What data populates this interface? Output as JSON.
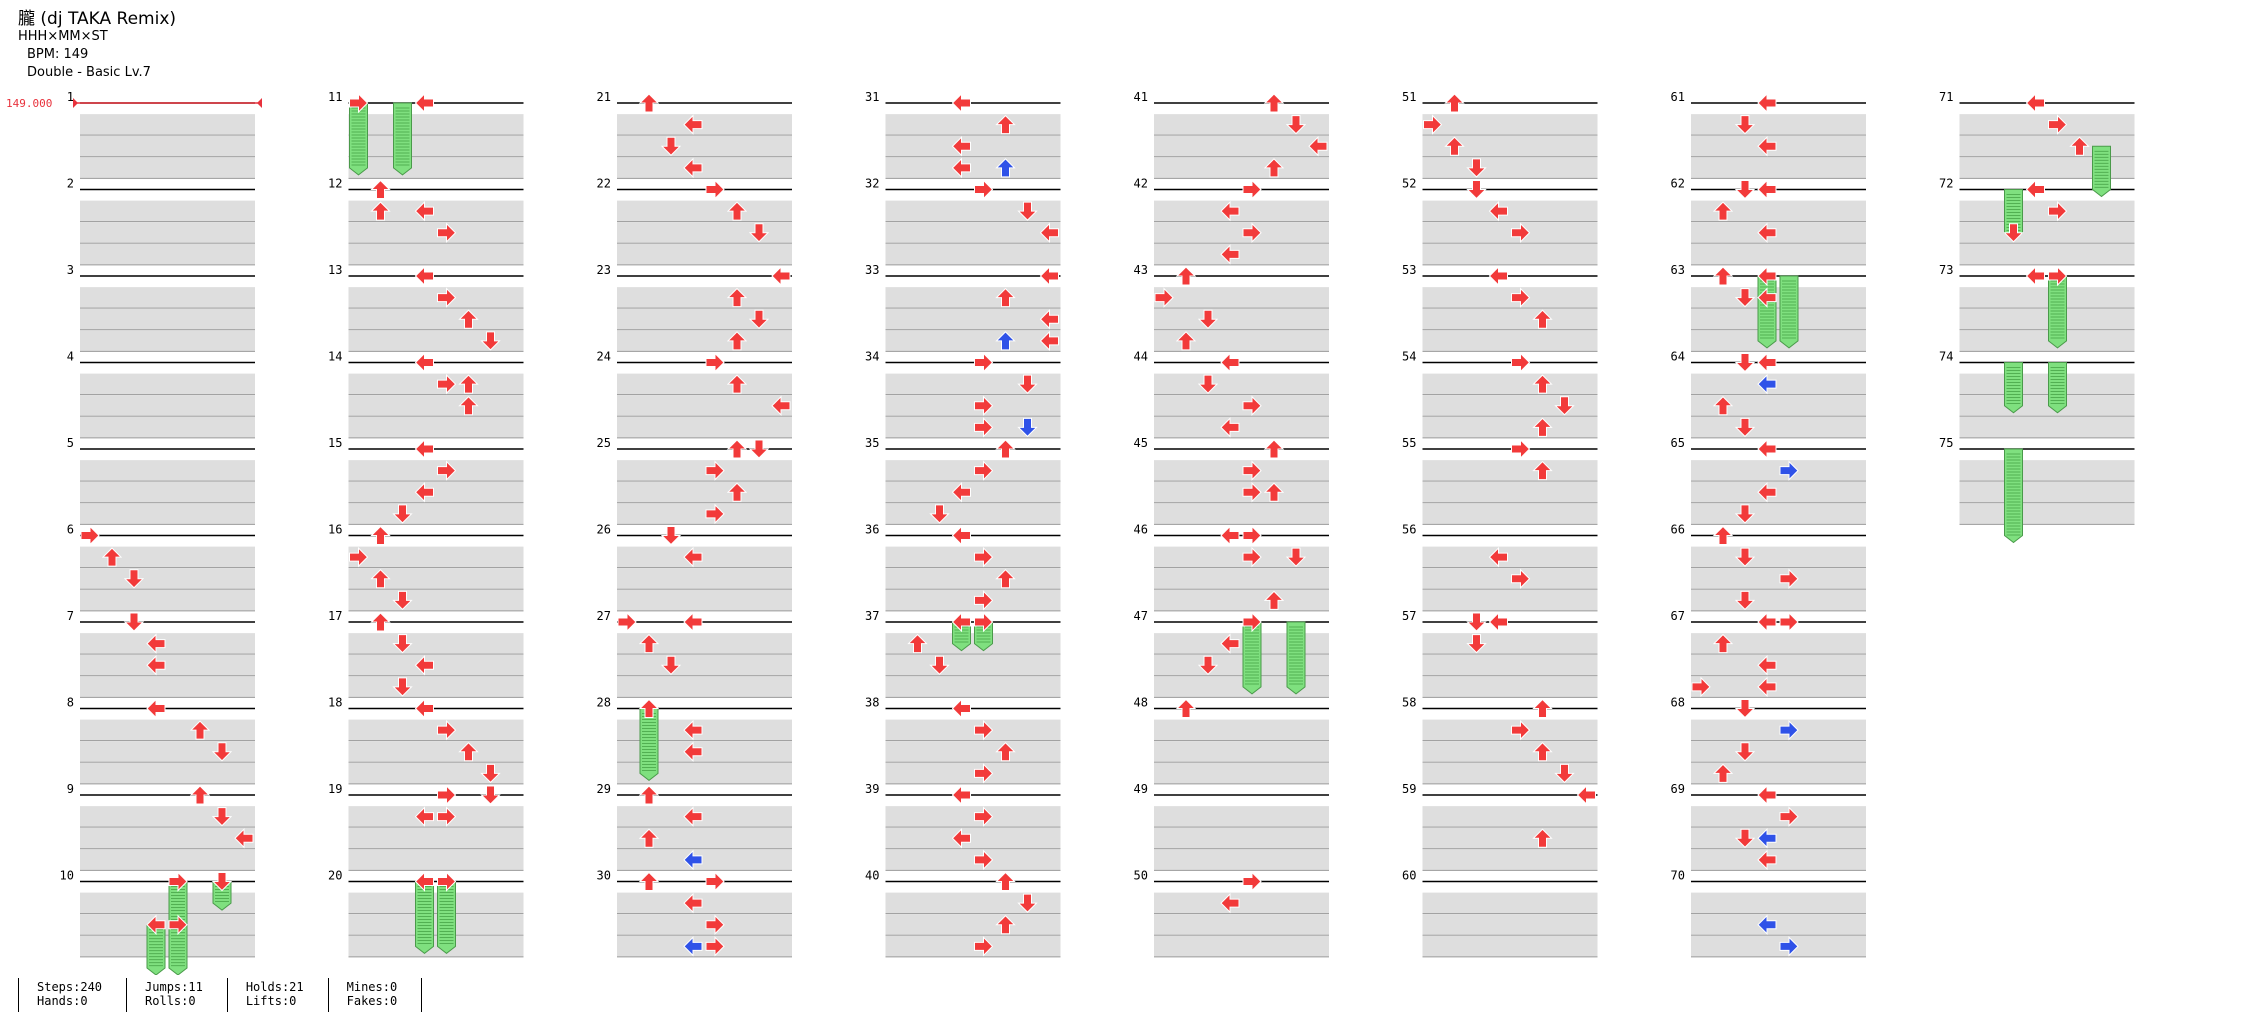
{
  "header": {
    "title": "朧 (dj TAKA Remix)",
    "artist": "HHH×MM×ST",
    "bpm": "BPM: 149",
    "difficulty": "Double - Basic Lv.7"
  },
  "chart_data": {
    "type": "step-chart",
    "style": "Double",
    "lanes": [
      "L1",
      "D1",
      "U1",
      "R1",
      "L2",
      "D2",
      "U2",
      "R2"
    ],
    "measures_total": 75,
    "bpm_marker": {
      "measure": 1,
      "value": "149.000"
    },
    "arrow_colors": {
      "quarter": "#f23a3a",
      "eighth": "#2f52e8",
      "hold": "#7fe07f"
    },
    "measure_numbers": [
      "1",
      "2",
      "3",
      "4",
      "5",
      "6",
      "7",
      "8",
      "9",
      "10",
      "11",
      "12",
      "13",
      "14",
      "15",
      "16",
      "17",
      "18",
      "19",
      "20",
      "21",
      "22",
      "23",
      "24",
      "25",
      "26",
      "27",
      "28",
      "29",
      "30",
      "31",
      "32",
      "33",
      "34",
      "35",
      "36",
      "37",
      "38",
      "39",
      "40",
      "41",
      "42",
      "43",
      "44",
      "45",
      "46",
      "47",
      "48",
      "49",
      "50",
      "51",
      "52",
      "53",
      "54",
      "55",
      "56",
      "57",
      "58",
      "59",
      "60",
      "61",
      "62",
      "63",
      "64",
      "65",
      "66",
      "67",
      "68",
      "69",
      "70",
      "71",
      "72",
      "73",
      "74",
      "75"
    ],
    "notes": [
      [
        6,
        0,
        0
      ],
      [
        6,
        1,
        1
      ],
      [
        6,
        2,
        2
      ],
      [
        7,
        2,
        0
      ],
      [
        7,
        3,
        1
      ],
      [
        7,
        3,
        2
      ],
      [
        8,
        3,
        0
      ],
      [
        8,
        5,
        1
      ],
      [
        8,
        6,
        2
      ],
      [
        9,
        5,
        0
      ],
      [
        9,
        6,
        1
      ],
      [
        9,
        7,
        2
      ],
      [
        10,
        4,
        0
      ],
      [
        10,
        6,
        0
      ],
      [
        10,
        3,
        2
      ],
      [
        10,
        4,
        2
      ],
      [
        11,
        0,
        0
      ],
      [
        11,
        3,
        0
      ],
      [
        12,
        1,
        0
      ],
      [
        12,
        1,
        1
      ],
      [
        12,
        3,
        1
      ],
      [
        12,
        4,
        2
      ],
      [
        13,
        3,
        0
      ],
      [
        13,
        4,
        1
      ],
      [
        13,
        5,
        2
      ],
      [
        13,
        6,
        3
      ],
      [
        14,
        3,
        0
      ],
      [
        14,
        5,
        1
      ],
      [
        14,
        4,
        1
      ],
      [
        14,
        5,
        2
      ],
      [
        15,
        3,
        0
      ],
      [
        15,
        4,
        1
      ],
      [
        15,
        3,
        2
      ],
      [
        15,
        2,
        3
      ],
      [
        16,
        1,
        0
      ],
      [
        16,
        0,
        1
      ],
      [
        16,
        1,
        2
      ],
      [
        16,
        2,
        3
      ],
      [
        17,
        1,
        0
      ],
      [
        17,
        2,
        1
      ],
      [
        17,
        3,
        2
      ],
      [
        17,
        2,
        3
      ],
      [
        18,
        3,
        0
      ],
      [
        18,
        4,
        1
      ],
      [
        18,
        5,
        2
      ],
      [
        18,
        6,
        3
      ],
      [
        19,
        4,
        0
      ],
      [
        19,
        6,
        0
      ],
      [
        19,
        3,
        1
      ],
      [
        19,
        4,
        1
      ],
      [
        20,
        3,
        0
      ],
      [
        20,
        4,
        0
      ],
      [
        21,
        1,
        0
      ],
      [
        21,
        3,
        1
      ],
      [
        21,
        2,
        2
      ],
      [
        21,
        3,
        3
      ],
      [
        22,
        4,
        0
      ],
      [
        22,
        5,
        1
      ],
      [
        22,
        6,
        2
      ],
      [
        23,
        7,
        0
      ],
      [
        23,
        5,
        1
      ],
      [
        23,
        6,
        2
      ],
      [
        23,
        5,
        3
      ],
      [
        24,
        4,
        0
      ],
      [
        24,
        5,
        1
      ],
      [
        24,
        7,
        2
      ],
      [
        25,
        5,
        0
      ],
      [
        25,
        6,
        0
      ],
      [
        25,
        4,
        1
      ],
      [
        25,
        5,
        2
      ],
      [
        25,
        4,
        3
      ],
      [
        26,
        2,
        0
      ],
      [
        26,
        3,
        1
      ],
      [
        27,
        0,
        0
      ],
      [
        27,
        3,
        0
      ],
      [
        27,
        1,
        1
      ],
      [
        27,
        2,
        2
      ],
      [
        28,
        1,
        0
      ],
      [
        28,
        3,
        1
      ],
      [
        28,
        3,
        2
      ],
      [
        29,
        1,
        0
      ],
      [
        29,
        3,
        1
      ],
      [
        29,
        1,
        2
      ],
      [
        29,
        3,
        3
      ],
      [
        30,
        1,
        0
      ],
      [
        30,
        4,
        0
      ],
      [
        30,
        3,
        1
      ],
      [
        30,
        4,
        2
      ],
      [
        30,
        3,
        3
      ],
      [
        30,
        4,
        3
      ],
      [
        31,
        3,
        0
      ],
      [
        31,
        5,
        1
      ],
      [
        31,
        3,
        2
      ],
      [
        31,
        5,
        3
      ],
      [
        31,
        3,
        3
      ],
      [
        32,
        4,
        0
      ],
      [
        32,
        6,
        1
      ],
      [
        32,
        7,
        2
      ],
      [
        33,
        7,
        0
      ],
      [
        33,
        5,
        1
      ],
      [
        33,
        7,
        2
      ],
      [
        33,
        5,
        3
      ],
      [
        33,
        7,
        3
      ],
      [
        34,
        4,
        0
      ],
      [
        34,
        6,
        1
      ],
      [
        34,
        4,
        2
      ],
      [
        34,
        6,
        3
      ],
      [
        34,
        4,
        3
      ],
      [
        35,
        5,
        0
      ],
      [
        35,
        4,
        1
      ],
      [
        35,
        3,
        2
      ],
      [
        35,
        2,
        3
      ],
      [
        36,
        3,
        0
      ],
      [
        36,
        4,
        1
      ],
      [
        36,
        5,
        2
      ],
      [
        36,
        4,
        3
      ],
      [
        37,
        3,
        0
      ],
      [
        37,
        4,
        0
      ],
      [
        37,
        1,
        1
      ],
      [
        37,
        2,
        2
      ],
      [
        38,
        3,
        0
      ],
      [
        38,
        4,
        1
      ],
      [
        38,
        5,
        2
      ],
      [
        38,
        4,
        3
      ],
      [
        39,
        3,
        0
      ],
      [
        39,
        4,
        1
      ],
      [
        39,
        3,
        2
      ],
      [
        39,
        4,
        3
      ],
      [
        40,
        5,
        0
      ],
      [
        40,
        6,
        1
      ],
      [
        40,
        5,
        2
      ],
      [
        40,
        4,
        3
      ],
      [
        41,
        5,
        0
      ],
      [
        41,
        6,
        1
      ],
      [
        41,
        7,
        2
      ],
      [
        41,
        5,
        3
      ],
      [
        42,
        4,
        0
      ],
      [
        42,
        3,
        1
      ],
      [
        42,
        4,
        2
      ],
      [
        42,
        3,
        3
      ],
      [
        43,
        1,
        0
      ],
      [
        43,
        0,
        1
      ],
      [
        43,
        2,
        2
      ],
      [
        43,
        1,
        3
      ],
      [
        44,
        3,
        0
      ],
      [
        44,
        2,
        1
      ],
      [
        44,
        4,
        2
      ],
      [
        44,
        3,
        3
      ],
      [
        45,
        5,
        0
      ],
      [
        45,
        4,
        1
      ],
      [
        45,
        5,
        2
      ],
      [
        45,
        4,
        2
      ],
      [
        46,
        3,
        0
      ],
      [
        46,
        4,
        0
      ],
      [
        46,
        4,
        1
      ],
      [
        46,
        6,
        1
      ],
      [
        46,
        5,
        3
      ],
      [
        47,
        4,
        0
      ],
      [
        47,
        3,
        1
      ],
      [
        47,
        2,
        2
      ],
      [
        48,
        1,
        0
      ],
      [
        50,
        4,
        0
      ],
      [
        50,
        3,
        1
      ],
      [
        51,
        1,
        0
      ],
      [
        51,
        0,
        1
      ],
      [
        51,
        1,
        2
      ],
      [
        51,
        2,
        3
      ],
      [
        52,
        2,
        0
      ],
      [
        52,
        3,
        1
      ],
      [
        52,
        4,
        2
      ],
      [
        53,
        3,
        0
      ],
      [
        53,
        4,
        1
      ],
      [
        53,
        5,
        2
      ],
      [
        54,
        4,
        0
      ],
      [
        54,
        5,
        1
      ],
      [
        54,
        6,
        2
      ],
      [
        54,
        5,
        3
      ],
      [
        55,
        4,
        0
      ],
      [
        55,
        5,
        1
      ],
      [
        56,
        3,
        1
      ],
      [
        56,
        4,
        2
      ],
      [
        57,
        2,
        0
      ],
      [
        57,
        3,
        0
      ],
      [
        57,
        2,
        1
      ],
      [
        58,
        5,
        0
      ],
      [
        58,
        4,
        1
      ],
      [
        58,
        5,
        2
      ],
      [
        58,
        6,
        3
      ],
      [
        59,
        7,
        0
      ],
      [
        59,
        5,
        2
      ],
      [
        61,
        3,
        0
      ],
      [
        61,
        2,
        1
      ],
      [
        61,
        3,
        2
      ],
      [
        62,
        2,
        0
      ],
      [
        62,
        3,
        0
      ],
      [
        62,
        1,
        1
      ],
      [
        62,
        3,
        2
      ],
      [
        63,
        1,
        0
      ],
      [
        63,
        3,
        0
      ],
      [
        63,
        2,
        1
      ],
      [
        63,
        3,
        1
      ],
      [
        64,
        2,
        0
      ],
      [
        64,
        3,
        0
      ],
      [
        64,
        3,
        1
      ],
      [
        64,
        1,
        2
      ],
      [
        64,
        2,
        3
      ],
      [
        65,
        3,
        0
      ],
      [
        65,
        4,
        1
      ],
      [
        65,
        3,
        2
      ],
      [
        65,
        2,
        3
      ],
      [
        66,
        1,
        0
      ],
      [
        66,
        2,
        1
      ],
      [
        66,
        4,
        2
      ],
      [
        66,
        2,
        3
      ],
      [
        67,
        3,
        0
      ],
      [
        67,
        4,
        0
      ],
      [
        67,
        1,
        1
      ],
      [
        67,
        3,
        2
      ],
      [
        67,
        0,
        3
      ],
      [
        67,
        3,
        3
      ],
      [
        68,
        2,
        0
      ],
      [
        68,
        4,
        1
      ],
      [
        68,
        2,
        2
      ],
      [
        68,
        1,
        3
      ],
      [
        69,
        3,
        0
      ],
      [
        69,
        4,
        1
      ],
      [
        69,
        2,
        2
      ],
      [
        69,
        3,
        2
      ],
      [
        69,
        3,
        3
      ],
      [
        71,
        3,
        0
      ],
      [
        71,
        4,
        1
      ],
      [
        71,
        5,
        2
      ],
      [
        72,
        3,
        0
      ],
      [
        72,
        4,
        1
      ],
      [
        72,
        2,
        2
      ],
      [
        73,
        4,
        0
      ],
      [
        73,
        3,
        0
      ]
    ],
    "eighths": [
      [
        29,
        3,
        3
      ],
      [
        30,
        3,
        3
      ],
      [
        31,
        5,
        3
      ],
      [
        33,
        5,
        3
      ],
      [
        34,
        6,
        3
      ],
      [
        64,
        3,
        1
      ],
      [
        65,
        4,
        1
      ],
      [
        68,
        4,
        1
      ],
      [
        69,
        3,
        2
      ],
      [
        70,
        3,
        2
      ],
      [
        70,
        4,
        3
      ]
    ],
    "holds": [
      [
        10,
        4,
        0,
        2
      ],
      [
        10,
        6,
        0,
        1
      ],
      [
        10,
        3,
        2,
        2
      ],
      [
        10,
        4,
        2,
        2
      ],
      [
        11,
        0,
        0,
        3
      ],
      [
        11,
        2,
        0,
        3
      ],
      [
        20,
        3,
        0,
        3
      ],
      [
        20,
        4,
        0,
        3
      ],
      [
        28,
        1,
        0,
        3
      ],
      [
        37,
        3,
        0,
        1
      ],
      [
        37,
        4,
        0,
        1
      ],
      [
        47,
        4,
        0,
        3
      ],
      [
        47,
        6,
        0,
        3
      ],
      [
        63,
        3,
        0,
        3
      ],
      [
        63,
        4,
        0,
        3
      ],
      [
        71,
        6,
        2,
        2
      ],
      [
        72,
        2,
        0,
        2
      ],
      [
        73,
        4,
        0,
        3
      ],
      [
        74,
        2,
        0,
        2
      ],
      [
        74,
        4,
        0,
        2
      ],
      [
        75,
        2,
        0,
        4
      ]
    ],
    "stats": {
      "steps": "Steps:240",
      "hands": "Hands:0",
      "jumps": "Jumps:11",
      "rolls": "Rolls:0",
      "holds": "Holds:21",
      "lifts": "Lifts:0",
      "mines": "Mines:0",
      "fakes": "Fakes:0"
    }
  }
}
